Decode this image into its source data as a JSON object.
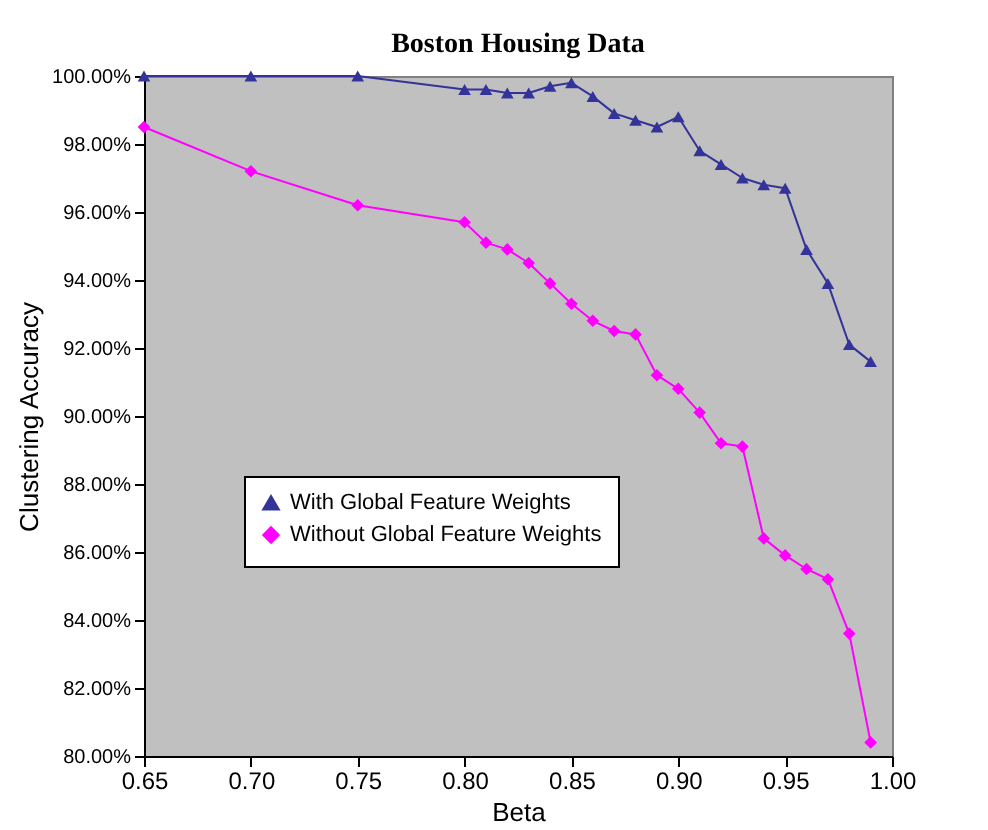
{
  "chart_data": {
    "type": "line",
    "title": "Boston Housing Data",
    "xlabel": "Beta",
    "ylabel": "Clustering Accuracy",
    "x": [
      0.65,
      0.7,
      0.75,
      0.8,
      0.81,
      0.82,
      0.83,
      0.84,
      0.85,
      0.86,
      0.87,
      0.88,
      0.89,
      0.9,
      0.91,
      0.92,
      0.93,
      0.94,
      0.95,
      0.96,
      0.97,
      0.98,
      0.99
    ],
    "series": [
      {
        "name": "With Global Feature Weights",
        "color": "#333399",
        "marker": "triangle",
        "values": [
          100,
          100,
          100,
          99.6,
          99.6,
          99.5,
          99.5,
          99.7,
          99.8,
          99.4,
          98.9,
          98.7,
          98.5,
          98.8,
          97.8,
          97.4,
          97.0,
          96.8,
          96.7,
          94.9,
          93.9,
          92.1,
          91.6
        ]
      },
      {
        "name": "Without Global Feature Weights",
        "color": "#ff00ff",
        "marker": "diamond",
        "values": [
          98.5,
          97.2,
          96.2,
          95.7,
          95.1,
          94.9,
          94.5,
          93.9,
          93.3,
          92.8,
          92.5,
          92.4,
          91.2,
          90.8,
          90.1,
          89.2,
          89.1,
          86.4,
          85.9,
          85.5,
          85.2,
          83.6,
          80.4
        ]
      }
    ],
    "xlim": [
      0.65,
      1.0
    ],
    "xticks": [
      {
        "value": 0.65,
        "label": "0.65"
      },
      {
        "value": 0.7,
        "label": "0.70"
      },
      {
        "value": 0.75,
        "label": "0.75"
      },
      {
        "value": 0.8,
        "label": "0.80"
      },
      {
        "value": 0.85,
        "label": "0.85"
      },
      {
        "value": 0.9,
        "label": "0.90"
      },
      {
        "value": 0.95,
        "label": "0.95"
      },
      {
        "value": 1.0,
        "label": "1.00"
      }
    ],
    "ylim": [
      80,
      100
    ],
    "yticks": [
      {
        "value": 80,
        "label": "80.00%"
      },
      {
        "value": 82,
        "label": "82.00%"
      },
      {
        "value": 84,
        "label": "84.00%"
      },
      {
        "value": 86,
        "label": "86.00%"
      },
      {
        "value": 88,
        "label": "88.00%"
      },
      {
        "value": 90,
        "label": "90.00%"
      },
      {
        "value": 92,
        "label": "92.00%"
      },
      {
        "value": 94,
        "label": "94.00%"
      },
      {
        "value": 96,
        "label": "96.00%"
      },
      {
        "value": 98,
        "label": "98.00%"
      },
      {
        "value": 100,
        "label": "100.00%"
      }
    ],
    "grid": false,
    "legend": "left",
    "line_style": "solid"
  }
}
